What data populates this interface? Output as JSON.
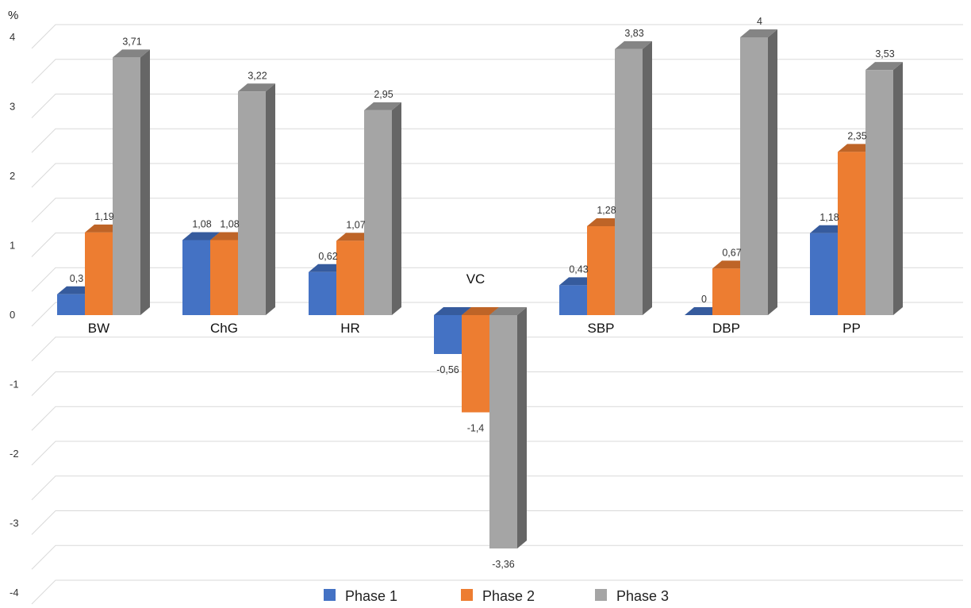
{
  "chart_data": {
    "type": "bar",
    "title": "",
    "unit_label": "%",
    "xlabel": "",
    "ylabel": "",
    "ylim": [
      -4,
      4
    ],
    "yticks": [
      4,
      3,
      2,
      1,
      0,
      -1,
      -2,
      -3,
      -4
    ],
    "grid": true,
    "legend_position": "bottom",
    "categories": [
      "BW",
      "ChG",
      "HR",
      "VC",
      "SBP",
      "DBP",
      "PP"
    ],
    "series": [
      {
        "name": "Phase 1",
        "color": "#4472C4",
        "values": [
          0.3,
          1.08,
          0.62,
          -0.56,
          0.43,
          0,
          1.18
        ],
        "labels": [
          "0,3",
          "1,08",
          "0,62",
          "-0,56",
          "0,43",
          "0",
          "1,18"
        ]
      },
      {
        "name": "Phase 2",
        "color": "#ED7D31",
        "values": [
          1.19,
          1.08,
          1.07,
          -1.4,
          1.28,
          0.67,
          2.35
        ],
        "labels": [
          "1,19",
          "1,08",
          "1,07",
          "-1,4",
          "1,28",
          "0,67",
          "2,35"
        ]
      },
      {
        "name": "Phase 3",
        "color": "#A5A5A5",
        "values": [
          3.71,
          3.22,
          2.95,
          -3.36,
          3.83,
          4,
          3.53
        ],
        "labels": [
          "3,71",
          "3,22",
          "2,95",
          "-3,36",
          "3,83",
          "4",
          "3,53"
        ]
      }
    ]
  }
}
